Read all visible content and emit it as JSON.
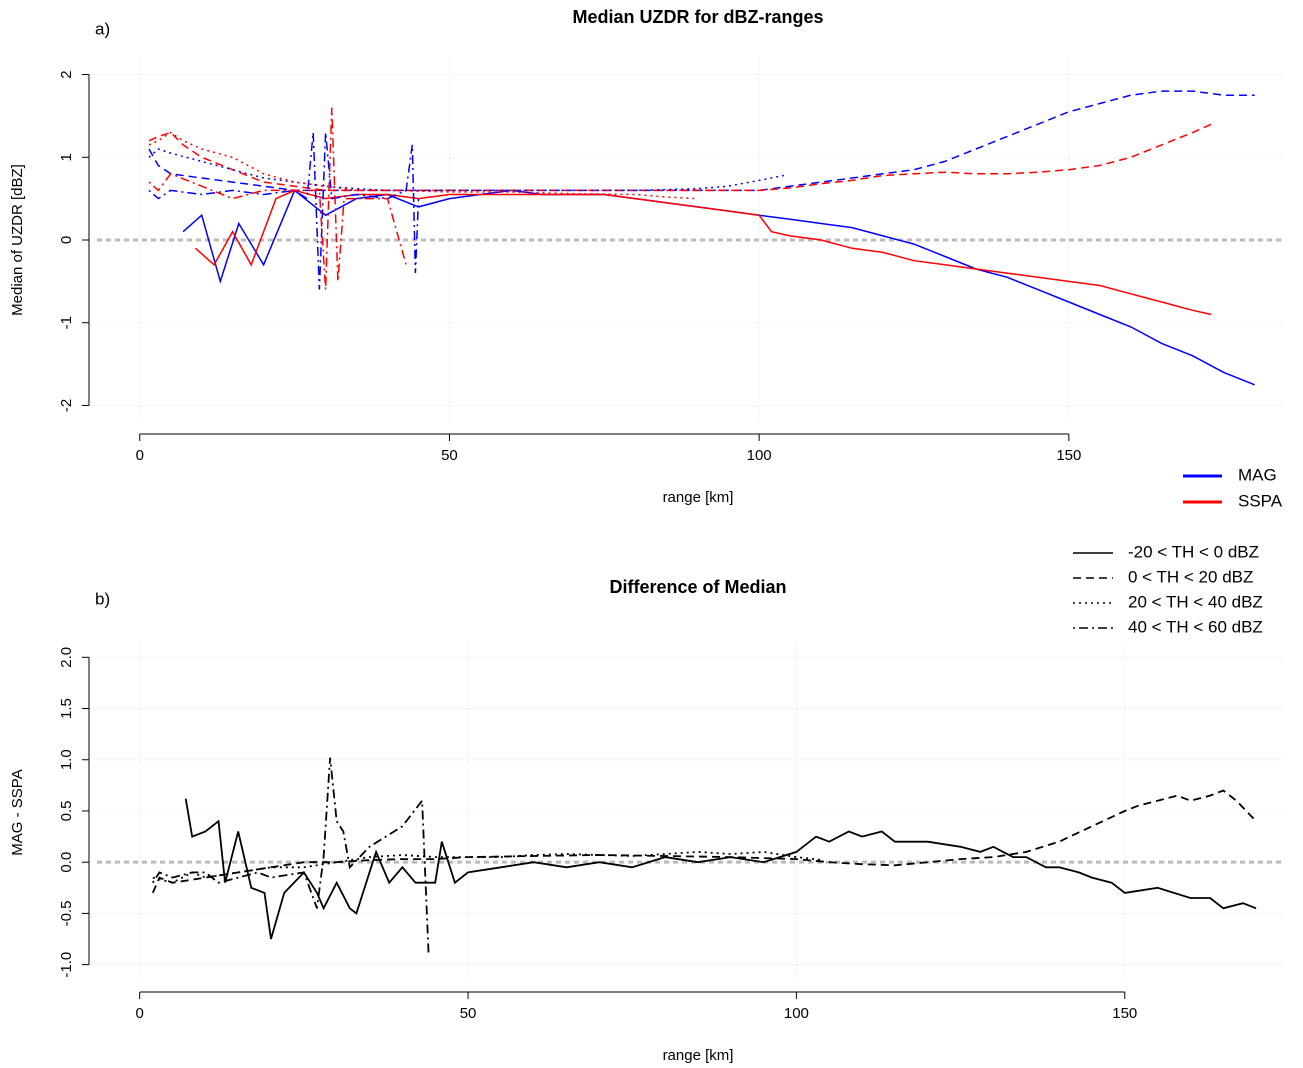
{
  "chart_data": [
    {
      "type": "line",
      "panel_label": "a)",
      "title": "Median UZDR for dBZ-ranges",
      "x_label": "range [km]",
      "y_label": "Median of UZDR [dBZ]",
      "xlim": [
        -6.9,
        184.9
      ],
      "ylim": [
        -2.2,
        2.2
      ],
      "xticks": [
        0,
        50,
        100,
        150
      ],
      "yticks": [
        -2,
        -1,
        0,
        1,
        2
      ],
      "grid": true,
      "reference_line": 0,
      "legend": {
        "instruments": [
          {
            "name": "MAG",
            "color": "#0000ff"
          },
          {
            "name": "SSPA",
            "color": "#ff0000"
          }
        ],
        "thresholds": [
          {
            "name": "-20 < TH < 0 dBZ",
            "dash": "solid"
          },
          {
            "name": "0 < TH < 20 dBZ",
            "dash": "dashed"
          },
          {
            "name": "20 < TH < 40 dBZ",
            "dash": "dotted"
          },
          {
            "name": "40 < TH < 60 dBZ",
            "dash": "dotdash"
          }
        ]
      },
      "series": [
        {
          "instrument": "MAG",
          "threshold": "-20 < TH < 0 dBZ",
          "x": [
            7,
            10,
            13,
            16,
            20,
            25,
            30,
            35,
            40,
            45,
            50,
            55,
            60,
            65,
            70,
            75,
            80,
            85,
            90,
            95,
            100,
            105,
            110,
            115,
            120,
            125,
            130,
            135,
            140,
            145,
            150,
            155,
            160,
            165,
            170,
            175,
            180
          ],
          "values": [
            0.1,
            0.3,
            -0.5,
            0.2,
            -0.3,
            0.6,
            0.3,
            0.5,
            0.55,
            0.4,
            0.5,
            0.55,
            0.6,
            0.55,
            0.55,
            0.55,
            0.5,
            0.45,
            0.4,
            0.35,
            0.3,
            0.25,
            0.2,
            0.15,
            0.05,
            -0.05,
            -0.2,
            -0.35,
            -0.45,
            -0.6,
            -0.75,
            -0.9,
            -1.05,
            -1.25,
            -1.4,
            -1.6,
            -1.75
          ]
        },
        {
          "instrument": "SSPA",
          "threshold": "-20 < TH < 0 dBZ",
          "x": [
            9,
            12,
            15,
            18,
            22,
            25,
            30,
            35,
            40,
            45,
            50,
            55,
            60,
            65,
            70,
            75,
            80,
            85,
            90,
            95,
            100,
            102,
            105,
            110,
            115,
            120,
            125,
            130,
            135,
            140,
            145,
            150,
            155,
            160,
            165,
            170,
            173
          ],
          "values": [
            -0.1,
            -0.3,
            0.1,
            -0.3,
            0.5,
            0.6,
            0.5,
            0.55,
            0.55,
            0.5,
            0.55,
            0.55,
            0.55,
            0.55,
            0.55,
            0.55,
            0.5,
            0.45,
            0.4,
            0.35,
            0.3,
            0.1,
            0.05,
            0,
            -0.1,
            -0.15,
            -0.25,
            -0.3,
            -0.35,
            -0.4,
            -0.45,
            -0.5,
            -0.55,
            -0.65,
            -0.75,
            -0.85,
            -0.9
          ]
        },
        {
          "instrument": "MAG",
          "threshold": "0 < TH < 20 dBZ",
          "x": [
            1.5,
            3,
            5,
            10,
            15,
            20,
            25,
            30,
            40,
            50,
            60,
            70,
            80,
            90,
            100,
            105,
            110,
            115,
            120,
            125,
            130,
            135,
            140,
            145,
            150,
            155,
            160,
            165,
            170,
            175,
            180
          ],
          "values": [
            1.1,
            0.9,
            0.8,
            0.75,
            0.7,
            0.65,
            0.6,
            0.6,
            0.6,
            0.6,
            0.6,
            0.6,
            0.6,
            0.6,
            0.6,
            0.65,
            0.7,
            0.75,
            0.8,
            0.85,
            0.95,
            1.1,
            1.25,
            1.4,
            1.55,
            1.65,
            1.75,
            1.8,
            1.8,
            1.75,
            1.75
          ]
        },
        {
          "instrument": "SSPA",
          "threshold": "0 < TH < 20 dBZ",
          "x": [
            1.5,
            3,
            5,
            7,
            10,
            15,
            20,
            25,
            30,
            40,
            50,
            60,
            70,
            80,
            90,
            100,
            105,
            110,
            115,
            120,
            125,
            130,
            135,
            140,
            145,
            150,
            155,
            160,
            165,
            170,
            173
          ],
          "values": [
            1.2,
            1.25,
            1.3,
            1.15,
            1.0,
            0.85,
            0.7,
            0.65,
            0.6,
            0.6,
            0.6,
            0.6,
            0.6,
            0.6,
            0.6,
            0.6,
            0.63,
            0.68,
            0.72,
            0.78,
            0.8,
            0.82,
            0.8,
            0.8,
            0.82,
            0.85,
            0.9,
            1.0,
            1.15,
            1.3,
            1.4
          ]
        },
        {
          "instrument": "MAG",
          "threshold": "20 < TH < 40 dBZ",
          "x": [
            1.5,
            3,
            5,
            10,
            15,
            20,
            25,
            30,
            35,
            40,
            50,
            60,
            70,
            80,
            90,
            95,
            100,
            104
          ],
          "values": [
            1.0,
            1.1,
            1.05,
            0.95,
            0.85,
            0.75,
            0.7,
            0.65,
            0.62,
            0.6,
            0.6,
            0.6,
            0.6,
            0.6,
            0.62,
            0.65,
            0.72,
            0.78
          ]
        },
        {
          "instrument": "SSPA",
          "threshold": "20 < TH < 40 dBZ",
          "x": [
            1.5,
            3,
            5,
            7,
            10,
            15,
            20,
            25,
            30,
            35,
            40,
            50,
            60,
            70,
            80,
            85,
            90
          ],
          "values": [
            1.15,
            1.2,
            1.3,
            1.2,
            1.1,
            1.0,
            0.8,
            0.7,
            0.65,
            0.6,
            0.6,
            0.58,
            0.58,
            0.56,
            0.55,
            0.52,
            0.5
          ]
        },
        {
          "instrument": "MAG",
          "threshold": "40 < TH < 60 dBZ",
          "x": [
            1.5,
            3,
            5,
            10,
            15,
            20,
            25,
            27,
            28,
            29,
            30,
            31,
            35,
            40,
            43,
            44,
            44.5,
            45
          ],
          "values": [
            0.6,
            0.5,
            0.6,
            0.55,
            0.6,
            0.55,
            0.6,
            0.5,
            1.3,
            -0.6,
            1.3,
            0.5,
            0.55,
            0.5,
            0.6,
            1.15,
            -0.4,
            0.5
          ]
        },
        {
          "instrument": "SSPA",
          "threshold": "40 < TH < 60 dBZ",
          "x": [
            1.5,
            3,
            5,
            10,
            15,
            20,
            25,
            29,
            30,
            31,
            32,
            33,
            35,
            40,
            43
          ],
          "values": [
            0.7,
            0.6,
            0.8,
            0.65,
            0.5,
            0.6,
            0.6,
            0.6,
            -0.6,
            1.6,
            -0.5,
            0.5,
            0.5,
            0.5,
            -0.3
          ]
        }
      ]
    },
    {
      "type": "line",
      "panel_label": "b)",
      "title": "Difference of Median",
      "x_label": "range [km]",
      "y_label": "MAG - SSPA",
      "xlim": [
        -6.5,
        174.4
      ],
      "ylim": [
        -1.15,
        2.12
      ],
      "xticks": [
        0,
        50,
        100,
        150
      ],
      "yticks": [
        {
          "value": -1,
          "label": "-1.0"
        },
        {
          "value": -0.5,
          "label": "-0.5"
        },
        {
          "value": 0,
          "label": "0.0"
        },
        {
          "value": 0.5,
          "label": "0.5"
        },
        {
          "value": 1,
          "label": "1.0"
        },
        {
          "value": 1.5,
          "label": "1.5"
        },
        {
          "value": 2,
          "label": "2.0"
        }
      ],
      "grid": true,
      "reference_line": 0,
      "color": "#000000",
      "series": [
        {
          "threshold": "-20 < TH < 0 dBZ",
          "x": [
            7,
            8,
            10,
            12,
            13,
            15,
            17,
            19,
            20,
            22,
            25,
            27,
            28,
            30,
            32,
            33,
            35,
            36,
            38,
            40,
            42,
            45,
            46,
            48,
            50,
            55,
            60,
            65,
            70,
            75,
            80,
            85,
            90,
            95,
            100,
            103,
            105,
            108,
            110,
            113,
            115,
            120,
            125,
            128,
            130,
            133,
            135,
            138,
            140,
            143,
            145,
            148,
            150,
            155,
            160,
            163,
            165,
            168,
            170
          ],
          "values": [
            0.62,
            0.25,
            0.3,
            0.4,
            -0.2,
            0.3,
            -0.25,
            -0.3,
            -0.75,
            -0.3,
            -0.1,
            -0.3,
            -0.45,
            -0.2,
            -0.45,
            -0.5,
            -0.1,
            0.1,
            -0.2,
            -0.05,
            -0.2,
            -0.2,
            0.2,
            -0.2,
            -0.1,
            -0.05,
            0,
            -0.05,
            0,
            -0.05,
            0.05,
            0,
            0.05,
            0,
            0.1,
            0.25,
            0.2,
            0.3,
            0.25,
            0.3,
            0.2,
            0.2,
            0.15,
            0.1,
            0.15,
            0.05,
            0.05,
            -0.05,
            -0.05,
            -0.1,
            -0.15,
            -0.2,
            -0.3,
            -0.25,
            -0.35,
            -0.35,
            -0.45,
            -0.4,
            -0.45
          ]
        },
        {
          "threshold": "0 < TH < 20 dBZ",
          "x": [
            2,
            3,
            5,
            10,
            15,
            20,
            25,
            30,
            35,
            40,
            45,
            50,
            60,
            70,
            80,
            90,
            100,
            105,
            110,
            115,
            120,
            125,
            130,
            135,
            140,
            145,
            150,
            152,
            155,
            158,
            160,
            163,
            165,
            167,
            170
          ],
          "values": [
            -0.3,
            -0.15,
            -0.2,
            -0.15,
            -0.1,
            -0.05,
            0,
            0,
            0.02,
            0.03,
            0.03,
            0.05,
            0.06,
            0.07,
            0.06,
            0.05,
            0.03,
            0,
            -0.02,
            -0.03,
            0,
            0.03,
            0.05,
            0.1,
            0.2,
            0.35,
            0.5,
            0.55,
            0.6,
            0.65,
            0.6,
            0.65,
            0.7,
            0.6,
            0.4
          ]
        },
        {
          "threshold": "20 < TH < 40 dBZ",
          "x": [
            2,
            5,
            8,
            10,
            15,
            20,
            25,
            30,
            35,
            40,
            45,
            50,
            55,
            60,
            65,
            70,
            75,
            80,
            85,
            90,
            95,
            100,
            104
          ],
          "values": [
            -0.15,
            -0.2,
            -0.1,
            -0.15,
            -0.1,
            -0.05,
            -0.05,
            0,
            0.05,
            0.07,
            0.05,
            0.05,
            0.05,
            0.07,
            0.08,
            0.07,
            0.06,
            0.08,
            0.1,
            0.08,
            0.1,
            0.05,
            0.02
          ]
        },
        {
          "threshold": "40 < TH < 60 dBZ",
          "x": [
            2,
            3,
            5,
            8,
            10,
            12,
            15,
            18,
            20,
            25,
            27,
            28,
            29,
            30,
            31,
            32,
            35,
            40,
            43,
            44
          ],
          "values": [
            -0.2,
            -0.1,
            -0.15,
            -0.1,
            -0.1,
            -0.2,
            -0.15,
            -0.1,
            -0.15,
            -0.1,
            -0.45,
            0.05,
            1.02,
            0.4,
            0.3,
            -0.05,
            0.15,
            0.35,
            0.6,
            -0.9
          ]
        }
      ]
    }
  ]
}
